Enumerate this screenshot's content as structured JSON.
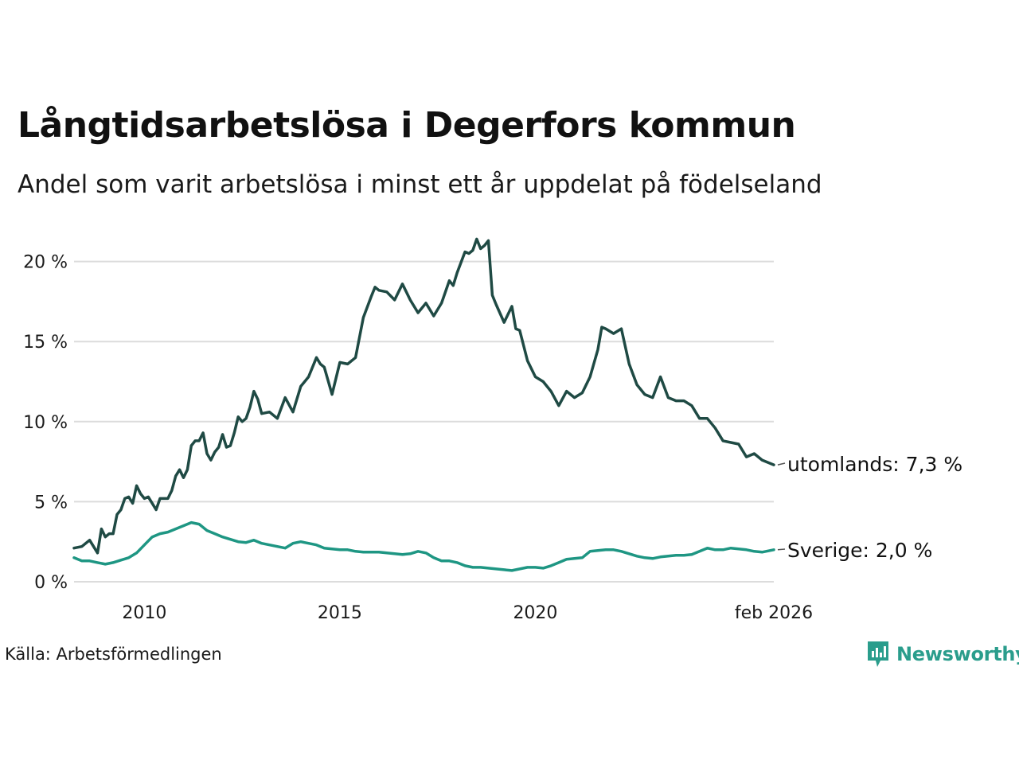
{
  "title": "Långtidsarbetslösa i Degerfors kommun",
  "subtitle": "Andel som varit arbetslösa i minst ett år uppdelat på födelseland",
  "source": "Källa: Arbetsförmedlingen",
  "brand": "Newsworthy",
  "colors": {
    "utomlands": "#1f4a44",
    "sverige": "#1e9683",
    "grid": "#dcdcdc",
    "brand": "#2a9d8c"
  },
  "chart_data": {
    "type": "line",
    "ylim": [
      0,
      22
    ],
    "xlim": [
      2008.2,
      2026.1
    ],
    "y_ticks": [
      {
        "value": 0,
        "label": "0 %"
      },
      {
        "value": 5,
        "label": "5 %"
      },
      {
        "value": 10,
        "label": "10 %"
      },
      {
        "value": 15,
        "label": "15 %"
      },
      {
        "value": 20,
        "label": "20 %"
      }
    ],
    "x_ticks": [
      {
        "value": 2010,
        "label": "2010"
      },
      {
        "value": 2015,
        "label": "2015"
      },
      {
        "value": 2020,
        "label": "2020"
      },
      {
        "value": 2026.1,
        "label": "feb 2026"
      }
    ],
    "series": [
      {
        "name": "utomlands",
        "label": "utomlands: 7,3 %",
        "x": [
          2008.2,
          2008.4,
          2008.6,
          2008.8,
          2008.9,
          2009.0,
          2009.1,
          2009.2,
          2009.3,
          2009.4,
          2009.5,
          2009.6,
          2009.7,
          2009.8,
          2009.9,
          2010.0,
          2010.1,
          2010.2,
          2010.3,
          2010.4,
          2010.5,
          2010.6,
          2010.7,
          2010.8,
          2010.9,
          2011.0,
          2011.1,
          2011.2,
          2011.3,
          2011.4,
          2011.5,
          2011.6,
          2011.7,
          2011.8,
          2011.9,
          2012.0,
          2012.1,
          2012.2,
          2012.3,
          2012.4,
          2012.5,
          2012.6,
          2012.7,
          2012.8,
          2012.9,
          2013.0,
          2013.2,
          2013.4,
          2013.6,
          2013.8,
          2014.0,
          2014.2,
          2014.4,
          2014.5,
          2014.6,
          2014.8,
          2015.0,
          2015.2,
          2015.4,
          2015.6,
          2015.8,
          2015.9,
          2016.0,
          2016.2,
          2016.4,
          2016.6,
          2016.8,
          2017.0,
          2017.2,
          2017.4,
          2017.6,
          2017.8,
          2017.9,
          2018.0,
          2018.2,
          2018.3,
          2018.4,
          2018.5,
          2018.6,
          2018.7,
          2018.8,
          2018.9,
          2019.0,
          2019.2,
          2019.4,
          2019.5,
          2019.6,
          2019.8,
          2020.0,
          2020.2,
          2020.4,
          2020.6,
          2020.8,
          2021.0,
          2021.2,
          2021.4,
          2021.6,
          2021.7,
          2021.8,
          2022.0,
          2022.2,
          2022.4,
          2022.6,
          2022.8,
          2023.0,
          2023.2,
          2023.4,
          2023.6,
          2023.8,
          2024.0,
          2024.2,
          2024.4,
          2024.6,
          2024.8,
          2025.0,
          2025.2,
          2025.4,
          2025.6,
          2025.8,
          2026.1
        ],
        "values": [
          2.1,
          2.2,
          2.6,
          1.8,
          3.3,
          2.8,
          3.0,
          3.0,
          4.2,
          4.5,
          5.2,
          5.3,
          4.9,
          6.0,
          5.5,
          5.2,
          5.3,
          4.9,
          4.5,
          5.2,
          5.2,
          5.2,
          5.7,
          6.6,
          7.0,
          6.5,
          7.0,
          8.5,
          8.8,
          8.8,
          9.3,
          8.0,
          7.6,
          8.1,
          8.4,
          9.2,
          8.4,
          8.5,
          9.3,
          10.3,
          10.0,
          10.2,
          10.9,
          11.9,
          11.4,
          10.5,
          10.6,
          10.2,
          11.5,
          10.6,
          12.2,
          12.8,
          14.0,
          13.6,
          13.4,
          11.7,
          13.7,
          13.6,
          14.0,
          16.5,
          17.8,
          18.4,
          18.2,
          18.1,
          17.6,
          18.6,
          17.6,
          16.8,
          17.4,
          16.6,
          17.4,
          18.8,
          18.5,
          19.3,
          20.6,
          20.5,
          20.7,
          21.4,
          20.8,
          21.0,
          21.3,
          17.9,
          17.3,
          16.2,
          17.2,
          15.8,
          15.7,
          13.8,
          12.8,
          12.5,
          11.9,
          11.0,
          11.9,
          11.5,
          11.8,
          12.8,
          14.5,
          15.9,
          15.8,
          15.5,
          15.8,
          13.6,
          12.3,
          11.7,
          11.5,
          12.8,
          11.5,
          11.3,
          11.3,
          11.0,
          10.2,
          10.2,
          9.6,
          8.8,
          8.7,
          8.6,
          7.8,
          8.0,
          7.6,
          7.3
        ]
      },
      {
        "name": "sverige",
        "label": "Sverige: 2,0 %",
        "x": [
          2008.2,
          2008.4,
          2008.6,
          2008.8,
          2009.0,
          2009.2,
          2009.4,
          2009.6,
          2009.8,
          2010.0,
          2010.2,
          2010.4,
          2010.6,
          2010.8,
          2011.0,
          2011.2,
          2011.4,
          2011.6,
          2011.8,
          2012.0,
          2012.2,
          2012.4,
          2012.6,
          2012.8,
          2013.0,
          2013.2,
          2013.4,
          2013.6,
          2013.8,
          2014.0,
          2014.2,
          2014.4,
          2014.6,
          2014.8,
          2015.0,
          2015.2,
          2015.4,
          2015.6,
          2015.8,
          2016.0,
          2016.2,
          2016.4,
          2016.6,
          2016.8,
          2017.0,
          2017.2,
          2017.4,
          2017.6,
          2017.8,
          2018.0,
          2018.2,
          2018.4,
          2018.6,
          2018.8,
          2019.0,
          2019.2,
          2019.4,
          2019.6,
          2019.8,
          2020.0,
          2020.2,
          2020.4,
          2020.6,
          2020.8,
          2021.0,
          2021.2,
          2021.4,
          2021.6,
          2021.8,
          2022.0,
          2022.2,
          2022.4,
          2022.6,
          2022.8,
          2023.0,
          2023.2,
          2023.4,
          2023.6,
          2023.8,
          2024.0,
          2024.2,
          2024.4,
          2024.6,
          2024.8,
          2025.0,
          2025.2,
          2025.4,
          2025.6,
          2025.8,
          2026.1
        ],
        "values": [
          1.5,
          1.3,
          1.3,
          1.2,
          1.1,
          1.2,
          1.35,
          1.5,
          1.8,
          2.3,
          2.8,
          3.0,
          3.1,
          3.3,
          3.5,
          3.7,
          3.6,
          3.2,
          3.0,
          2.8,
          2.65,
          2.5,
          2.45,
          2.6,
          2.4,
          2.3,
          2.2,
          2.1,
          2.4,
          2.5,
          2.4,
          2.3,
          2.1,
          2.05,
          2.0,
          2.0,
          1.9,
          1.85,
          1.85,
          1.85,
          1.8,
          1.75,
          1.7,
          1.75,
          1.9,
          1.8,
          1.5,
          1.3,
          1.3,
          1.2,
          1.0,
          0.9,
          0.9,
          0.85,
          0.8,
          0.75,
          0.7,
          0.8,
          0.9,
          0.9,
          0.85,
          1.0,
          1.2,
          1.4,
          1.45,
          1.5,
          1.9,
          1.95,
          2.0,
          2.0,
          1.9,
          1.75,
          1.6,
          1.5,
          1.45,
          1.55,
          1.6,
          1.65,
          1.65,
          1.7,
          1.9,
          2.1,
          2.0,
          2.0,
          2.1,
          2.05,
          2.0,
          1.9,
          1.85,
          2.0
        ]
      }
    ]
  }
}
